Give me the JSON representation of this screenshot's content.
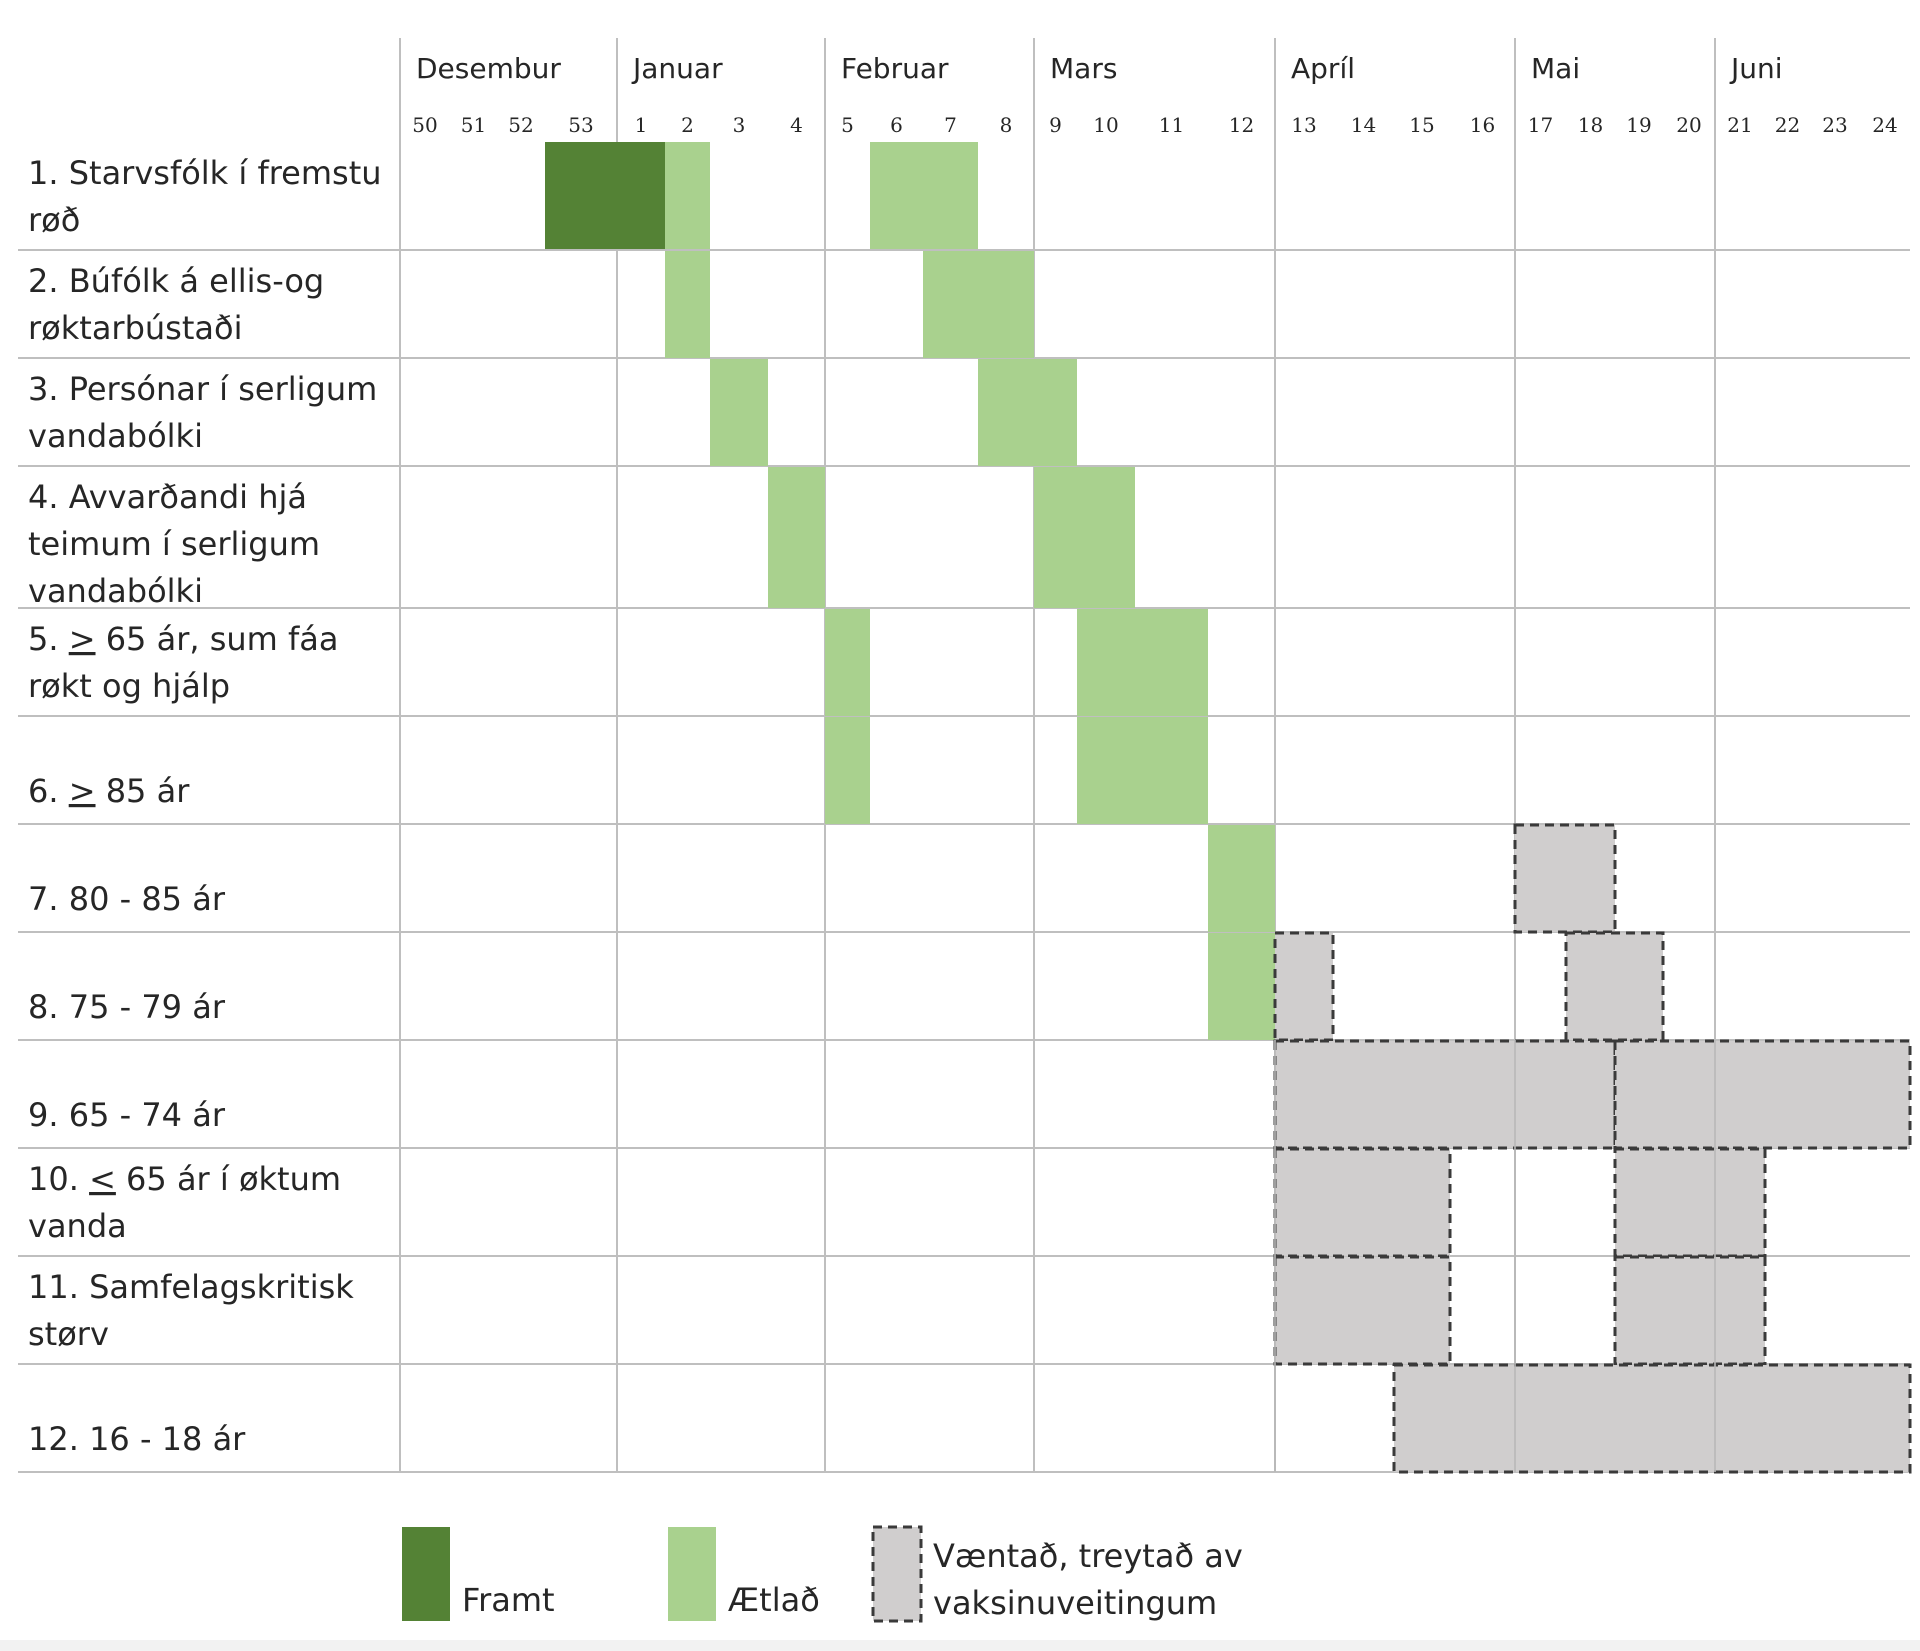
{
  "chart_data": {
    "type": "gantt",
    "week_axis": [
      "50",
      "51",
      "52",
      "53",
      "1",
      "2",
      "3",
      "4",
      "5",
      "6",
      "7",
      "8",
      "9",
      "10",
      "11",
      "12",
      "13",
      "14",
      "15",
      "16",
      "17",
      "18",
      "19",
      "20",
      "21",
      "22",
      "23",
      "24"
    ],
    "months": [
      {
        "label": "Desembur",
        "start_week": "50",
        "end_week": "53"
      },
      {
        "label": "Januar",
        "start_week": "1",
        "end_week": "4"
      },
      {
        "label": "Februar",
        "start_week": "5",
        "end_week": "8"
      },
      {
        "label": "Mars",
        "start_week": "9",
        "end_week": "12"
      },
      {
        "label": "Apríl",
        "start_week": "13",
        "end_week": "16"
      },
      {
        "label": "Mai",
        "start_week": "17",
        "end_week": "20"
      },
      {
        "label": "Juni",
        "start_week": "21",
        "end_week": "24"
      }
    ],
    "rows": [
      {
        "label_lines": [
          [
            {
              "t": "1. Starvsfólk í fremstu"
            }
          ],
          [
            {
              "t": "røð"
            }
          ]
        ],
        "lines_height": 2
      },
      {
        "label_lines": [
          [
            {
              "t": "2. Búfólk á ellis-og"
            }
          ],
          [
            {
              "t": "røktarbústaði"
            }
          ]
        ],
        "lines_height": 2
      },
      {
        "label_lines": [
          [
            {
              "t": "3. Persónar í serligum"
            }
          ],
          [
            {
              "t": "vandabólki"
            }
          ]
        ],
        "lines_height": 2
      },
      {
        "label_lines": [
          [
            {
              "t": "4. Avvarðandi hjá"
            }
          ],
          [
            {
              "t": "teimum í serligum"
            }
          ],
          [
            {
              "t": "vandabólki"
            }
          ]
        ],
        "lines_height": 3
      },
      {
        "label_lines": [
          [
            {
              "t": "5. "
            },
            {
              "t": ">",
              "u": true
            },
            {
              "t": " 65 ár, sum fáa"
            }
          ],
          [
            {
              "t": "røkt og hjálp"
            }
          ]
        ],
        "lines_height": 2
      },
      {
        "label_lines": [
          [
            {
              "t": "6. "
            },
            {
              "t": ">",
              "u": true
            },
            {
              "t": " 85 ár"
            }
          ]
        ],
        "lines_height": 2
      },
      {
        "label_lines": [
          [
            {
              "t": "7. 80 - 85 ár"
            }
          ]
        ],
        "lines_height": 2
      },
      {
        "label_lines": [
          [
            {
              "t": "8. 75 - 79 ár"
            }
          ]
        ],
        "lines_height": 2
      },
      {
        "label_lines": [
          [
            {
              "t": "9. 65 - 74 ár"
            }
          ]
        ],
        "lines_height": 2
      },
      {
        "label_lines": [
          [
            {
              "t": "10. "
            },
            {
              "t": "<",
              "u": true
            },
            {
              "t": " 65 ár í øktum"
            }
          ],
          [
            {
              "t": "vanda"
            }
          ]
        ],
        "lines_height": 2
      },
      {
        "label_lines": [
          [
            {
              "t": "11. Samfelagskritisk"
            }
          ],
          [
            {
              "t": "størv"
            }
          ]
        ],
        "lines_height": 2
      },
      {
        "label_lines": [
          [
            {
              "t": "12. 16 - 18 ár"
            }
          ]
        ],
        "lines_height": 2
      }
    ],
    "bars": [
      {
        "row": 1,
        "status": "Framt",
        "start_week": "53",
        "end_week": "1"
      },
      {
        "row": 1,
        "status": "Ætlað",
        "start_week": "2",
        "end_week": "2"
      },
      {
        "row": 1,
        "status": "Ætlað",
        "start_week": "6",
        "end_week": "7"
      },
      {
        "row": 2,
        "status": "Ætlað",
        "start_week": "2",
        "end_week": "2"
      },
      {
        "row": 2,
        "status": "Ætlað",
        "start_week": "7",
        "end_week": "8"
      },
      {
        "row": 3,
        "status": "Ætlað",
        "start_week": "3",
        "end_week": "3"
      },
      {
        "row": 3,
        "status": "Ætlað",
        "start_week": "8",
        "end_week": "9"
      },
      {
        "row": 4,
        "status": "Ætlað",
        "start_week": "4",
        "end_week": "4"
      },
      {
        "row": 4,
        "status": "Ætlað",
        "start_week": "9",
        "end_week": "10"
      },
      {
        "row": 5,
        "status": "Ætlað",
        "start_week": "5",
        "end_week": "5"
      },
      {
        "row": 5,
        "status": "Ætlað",
        "start_week": "10",
        "end_week": "11"
      },
      {
        "row": 6,
        "status": "Ætlað",
        "start_week": "5",
        "end_week": "5"
      },
      {
        "row": 6,
        "status": "Ætlað",
        "start_week": "10",
        "end_week": "11"
      },
      {
        "row": 7,
        "status": "Ætlað",
        "start_week": "12",
        "end_week": "12"
      },
      {
        "row": 7,
        "status": "Væntað",
        "start_week": "17",
        "end_week": "18"
      },
      {
        "row": 8,
        "status": "Ætlað",
        "start_week": "12",
        "end_week": "12"
      },
      {
        "row": 8,
        "status": "Væntað",
        "start_week": "13",
        "end_week": "13"
      },
      {
        "row": 8,
        "status": "Væntað",
        "start_week": "18",
        "end_week": "19"
      },
      {
        "row": 9,
        "status": "Væntað",
        "start_week": "13",
        "end_week": "18"
      },
      {
        "row": 9,
        "status": "Væntað",
        "start_week": "19",
        "end_week": "24"
      },
      {
        "row": 10,
        "status": "Væntað",
        "start_week": "13",
        "end_week": "15"
      },
      {
        "row": 10,
        "status": "Væntað",
        "start_week": "19",
        "end_week": "21"
      },
      {
        "row": 11,
        "status": "Væntað",
        "start_week": "13",
        "end_week": "15"
      },
      {
        "row": 11,
        "status": "Væntað",
        "start_week": "19",
        "end_week": "21"
      },
      {
        "row": 12,
        "status": "Væntað",
        "start_week": "15",
        "end_week": "24"
      }
    ],
    "legend": [
      {
        "status": "Framt",
        "label_lines": [
          "Framt"
        ]
      },
      {
        "status": "Ætlað",
        "label_lines": [
          "Ætlað"
        ]
      },
      {
        "status": "Væntað",
        "label_lines": [
          "Væntað, treytað av",
          "vaksinuveitingum"
        ]
      }
    ],
    "colors": {
      "Framt": "#548235",
      "Ætlað": "#a9d18e",
      "Væntað": "#d0cece",
      "grid": "#bfbfbf",
      "text": "#262626"
    }
  }
}
